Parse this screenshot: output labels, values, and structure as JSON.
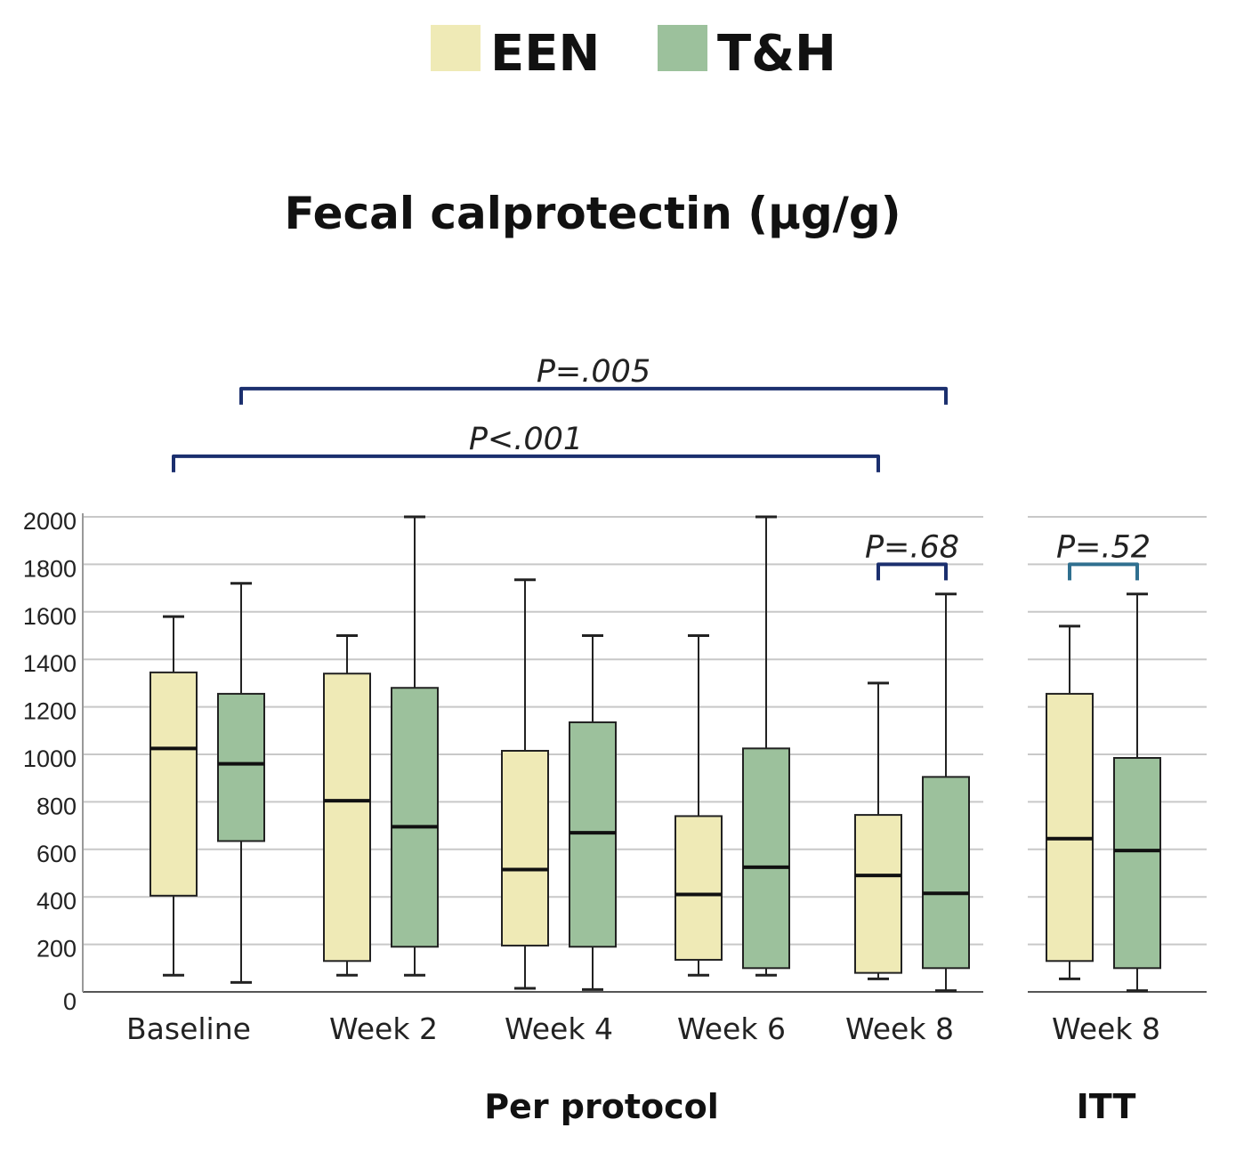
{
  "legend": [
    {
      "name": "EEN",
      "color": "#efeab6"
    },
    {
      "name": "T&H",
      "color": "#9cc19c"
    }
  ],
  "title": "Fecal calprotectin (µg/g)",
  "colors": {
    "grid": "#c8c8c8",
    "bracket_pp": "#1b2f6e",
    "bracket_itt": "#2f6f8f",
    "box_stroke": "#222222"
  },
  "chart_data": {
    "type": "boxplot",
    "title": "Fecal calprotectin (µg/g)",
    "ylim": [
      0,
      2000
    ],
    "yticks": [
      0,
      200,
      400,
      600,
      800,
      1000,
      1200,
      1400,
      1600,
      1800,
      2000
    ],
    "grid": true,
    "legend_position": "top-center",
    "series_names": [
      "EEN",
      "T&H"
    ],
    "panels": [
      {
        "name": "Per protocol",
        "categories": [
          "Baseline",
          "Week 2",
          "Week 4",
          "Week 6",
          "Week 8"
        ],
        "series": [
          {
            "name": "EEN",
            "boxes": [
              {
                "min": 70,
                "q1": 405,
                "median": 1025,
                "q3": 1345,
                "max": 1580
              },
              {
                "min": 70,
                "q1": 130,
                "median": 805,
                "q3": 1340,
                "max": 1500
              },
              {
                "min": 15,
                "q1": 195,
                "median": 515,
                "q3": 1015,
                "max": 1735
              },
              {
                "min": 70,
                "q1": 135,
                "median": 410,
                "q3": 740,
                "max": 1500
              },
              {
                "min": 55,
                "q1": 80,
                "median": 490,
                "q3": 745,
                "max": 1300
              }
            ]
          },
          {
            "name": "T&H",
            "boxes": [
              {
                "min": 40,
                "q1": 635,
                "median": 960,
                "q3": 1255,
                "max": 1720
              },
              {
                "min": 70,
                "q1": 190,
                "median": 695,
                "q3": 1280,
                "max": 2000
              },
              {
                "min": 10,
                "q1": 190,
                "median": 670,
                "q3": 1135,
                "max": 1500
              },
              {
                "min": 70,
                "q1": 100,
                "median": 525,
                "q3": 1025,
                "max": 2000
              },
              {
                "min": 5,
                "q1": 100,
                "median": 415,
                "q3": 905,
                "max": 1675
              }
            ]
          }
        ]
      },
      {
        "name": "ITT",
        "categories": [
          "Week 8"
        ],
        "series": [
          {
            "name": "EEN",
            "boxes": [
              {
                "min": 55,
                "q1": 130,
                "median": 645,
                "q3": 1255,
                "max": 1540
              }
            ]
          },
          {
            "name": "T&H",
            "boxes": [
              {
                "min": 5,
                "q1": 100,
                "median": 595,
                "q3": 985,
                "max": 1675
              }
            ]
          }
        ]
      }
    ],
    "annotations": [
      {
        "label": "P=.005",
        "panel": 0,
        "from": {
          "cat": 0,
          "series": 1
        },
        "to": {
          "cat": 4,
          "series": 1
        },
        "level": 2540
      },
      {
        "label": "P<.001",
        "panel": 0,
        "from": {
          "cat": 0,
          "series": 0
        },
        "to": {
          "cat": 4,
          "series": 0
        },
        "level": 2255
      },
      {
        "label": "P=.68",
        "panel": 0,
        "from": {
          "cat": 4,
          "series": 0
        },
        "to": {
          "cat": 4,
          "series": 1
        },
        "level": 1800
      },
      {
        "label": "P=.52",
        "panel": 1,
        "from": {
          "cat": 0,
          "series": 0
        },
        "to": {
          "cat": 0,
          "series": 1
        },
        "level": 1800
      }
    ]
  }
}
